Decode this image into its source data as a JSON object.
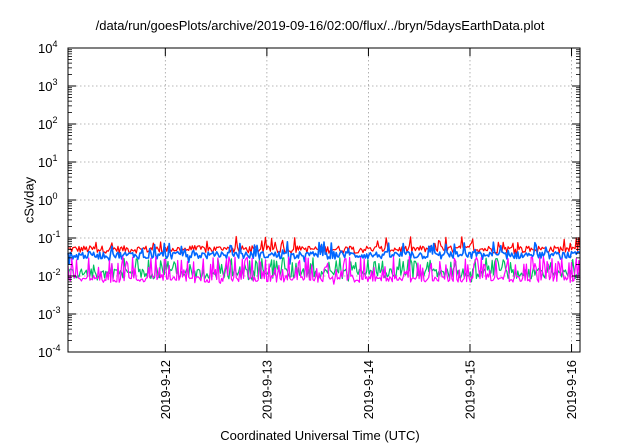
{
  "chart_data": {
    "type": "line",
    "title": "/data/run/goesPlots/archive/2019-09-16/02:00/flux/../bryn/5daysEarthData.plot",
    "xlabel": "Coordinated Universal Time (UTC)",
    "ylabel": "cSv/day",
    "y_scale": "log",
    "ylim": [
      0.0001,
      10000
    ],
    "y_ticks": [
      {
        "base": "10",
        "exp": "-4"
      },
      {
        "base": "10",
        "exp": "-3"
      },
      {
        "base": "10",
        "exp": "-2"
      },
      {
        "base": "10",
        "exp": "-1"
      },
      {
        "base": "10",
        "exp": "0"
      },
      {
        "base": "10",
        "exp": "1"
      },
      {
        "base": "10",
        "exp": "2"
      },
      {
        "base": "10",
        "exp": "3"
      },
      {
        "base": "10",
        "exp": "4"
      }
    ],
    "xlim": [
      "2019-09-11T01:00",
      "2019-09-16T02:00"
    ],
    "x_ticks": [
      "2019-9-12",
      "2019-9-13",
      "2019-9-14",
      "2019-9-15",
      "2019-9-16"
    ],
    "grid": true,
    "series": [
      {
        "color": "#ff0000",
        "typical_value": 0.05,
        "range": [
          0.03,
          0.11
        ]
      },
      {
        "color": "#00c060",
        "typical_value": 0.012,
        "range": [
          0.007,
          0.03
        ]
      },
      {
        "color": "#0066ff",
        "typical_value": 0.035,
        "range": [
          0.02,
          0.08
        ]
      },
      {
        "color": "#ff00ff",
        "typical_value": 0.008,
        "range": [
          0.006,
          0.05
        ]
      }
    ]
  }
}
